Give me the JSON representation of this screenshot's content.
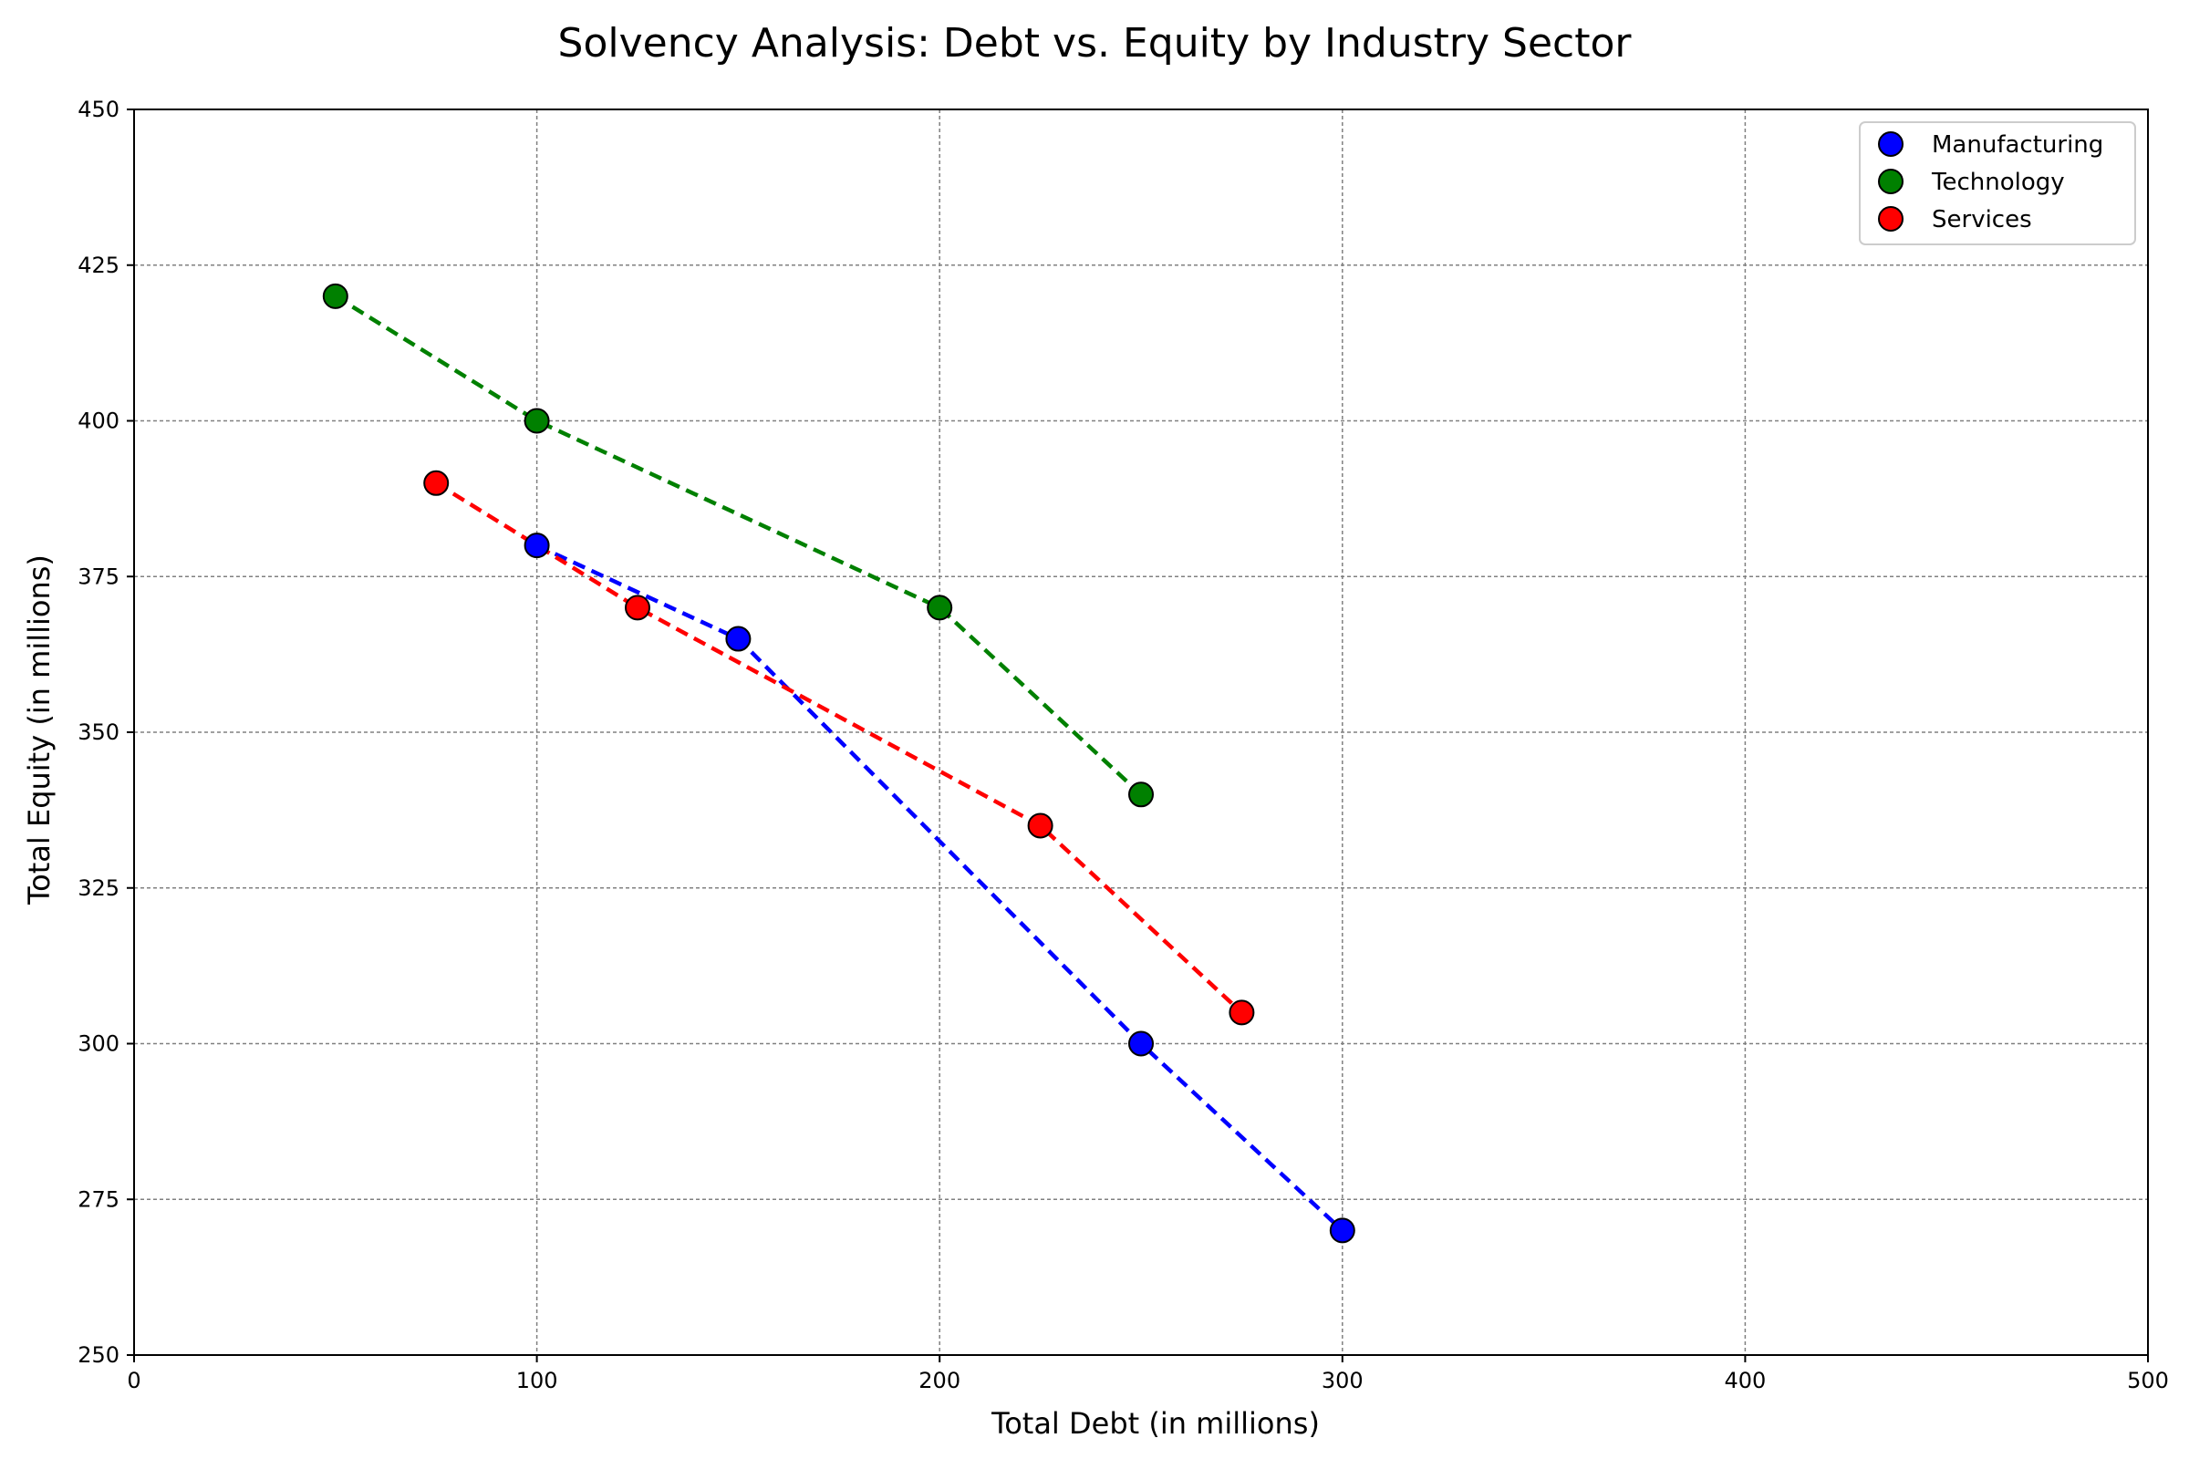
{
  "chart_data": {
    "type": "scatter",
    "title": "Solvency Analysis: Debt vs. Equity by Industry Sector",
    "xlabel": "Total Debt (in millions)",
    "ylabel": "Total Equity (in millions)",
    "xlim": [
      0,
      500
    ],
    "ylim": [
      250,
      450
    ],
    "xticks": [
      0,
      100,
      200,
      300,
      400,
      500
    ],
    "yticks": [
      250,
      275,
      300,
      325,
      350,
      375,
      400,
      425,
      450
    ],
    "grid": true,
    "legend_position": "top-right",
    "connected_by": "dashed-line",
    "series": [
      {
        "name": "Manufacturing",
        "color": "#0000ff",
        "x": [
          100,
          150,
          250,
          300
        ],
        "y": [
          380,
          365,
          300,
          270
        ]
      },
      {
        "name": "Technology",
        "color": "#008000",
        "x": [
          50,
          100,
          200,
          250
        ],
        "y": [
          420,
          400,
          370,
          340
        ]
      },
      {
        "name": "Services",
        "color": "#ff0000",
        "x": [
          75,
          125,
          225,
          275
        ],
        "y": [
          390,
          370,
          335,
          305
        ]
      }
    ]
  }
}
